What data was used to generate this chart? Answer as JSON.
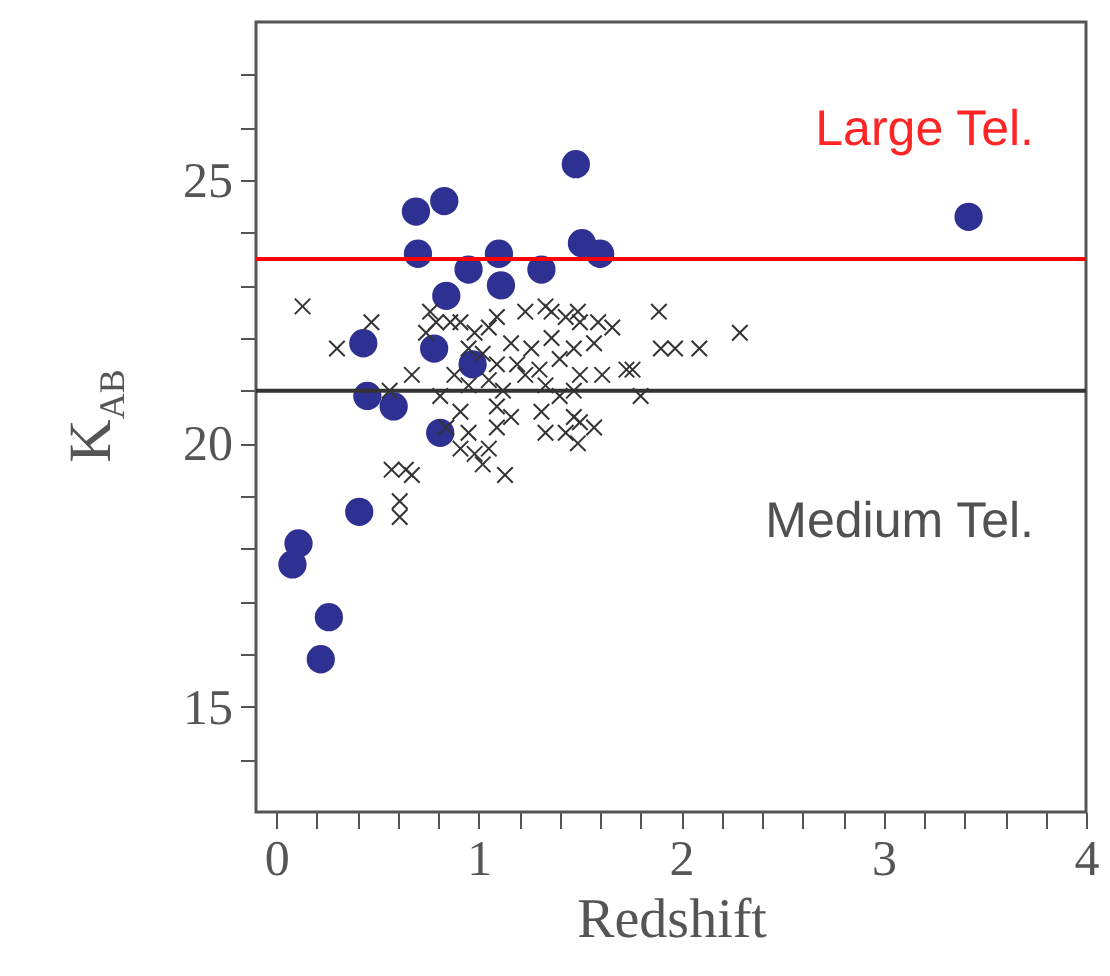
{
  "chart_data": {
    "type": "scatter",
    "xlabel": "Redshift",
    "ylabel": "K$_{AB}$",
    "xlim": [
      -0.1,
      4.0
    ],
    "ylim": [
      13,
      28
    ],
    "xticks": [
      0,
      {
        "value": 0.2,
        "label": null
      },
      {
        "value": 0.4,
        "label": null
      },
      {
        "value": 0.6,
        "label": null
      },
      {
        "value": 0.8,
        "label": null
      },
      1,
      {
        "value": 1.2,
        "label": null
      },
      {
        "value": 1.4,
        "label": null
      },
      {
        "value": 1.6,
        "label": null
      },
      {
        "value": 1.8,
        "label": null
      },
      2,
      {
        "value": 2.2,
        "label": null
      },
      {
        "value": 2.4,
        "label": null
      },
      {
        "value": 2.6,
        "label": null
      },
      {
        "value": 2.8,
        "label": null
      },
      3,
      {
        "value": 3.2,
        "label": null
      },
      {
        "value": 3.4,
        "label": null
      },
      {
        "value": 3.6,
        "label": null
      },
      {
        "value": 3.8,
        "label": null
      },
      4
    ],
    "yticks": [
      {
        "value": 14,
        "label": null
      },
      15,
      {
        "value": 16,
        "label": null
      },
      {
        "value": 17,
        "label": null
      },
      {
        "value": 18,
        "label": null
      },
      {
        "value": 19,
        "label": null
      },
      20,
      {
        "value": 21,
        "label": null
      },
      {
        "value": 22,
        "label": null
      },
      {
        "value": 23,
        "label": null
      },
      {
        "value": 24,
        "label": null
      },
      25,
      {
        "value": 26,
        "label": null
      },
      {
        "value": 27,
        "label": null
      }
    ],
    "grid": false,
    "series": [
      {
        "color": "#2e3192",
        "marker": "circle",
        "x": [
          1.48,
          3.42,
          0.69,
          0.83,
          0.7,
          0.95,
          1.1,
          1.11,
          1.31,
          1.51,
          1.6,
          0.84,
          0.43,
          0.78,
          0.97,
          0.45,
          0.58,
          0.81,
          0.41,
          0.11,
          0.08,
          0.26,
          0.22
        ],
        "values": [
          25.3,
          24.3,
          24.4,
          24.6,
          23.6,
          23.3,
          23.6,
          23.0,
          23.3,
          23.8,
          23.6,
          22.8,
          21.9,
          21.8,
          21.5,
          20.9,
          20.7,
          20.2,
          18.7,
          18.1,
          17.7,
          16.7,
          15.9
        ]
      },
      {
        "color": "#333333",
        "marker": "cross",
        "x": [
          0.13,
          0.47,
          0.3,
          0.67,
          0.56,
          0.57,
          0.64,
          0.67,
          0.61,
          0.61,
          1.89,
          1.9,
          1.97,
          2.09,
          2.29,
          1.8,
          1.73,
          1.76,
          1.66,
          1.59,
          1.49,
          1.43,
          1.36,
          1.33,
          1.23,
          1.09,
          1.05,
          0.98,
          0.91,
          0.76,
          0.79,
          0.86,
          0.74,
          1.16,
          1.26,
          1.36,
          1.47,
          1.57,
          1.19,
          1.3,
          1.4,
          1.5,
          1.61,
          0.88,
          0.95,
          1.05,
          1.12,
          1.23,
          1.33,
          1.4,
          1.47,
          0.81,
          0.91,
          1.09,
          1.16,
          1.31,
          1.47,
          0.84,
          0.95,
          1.09,
          1.33,
          1.43,
          1.5,
          1.49,
          0.91,
          0.98,
          1.05,
          1.02,
          1.13,
          1.57,
          1.02,
          1.09,
          0.95,
          1.5
        ],
        "values": [
          22.6,
          22.3,
          21.8,
          21.3,
          21.0,
          19.5,
          19.5,
          19.4,
          18.9,
          18.6,
          22.5,
          21.8,
          21.8,
          21.8,
          22.1,
          20.9,
          21.4,
          21.4,
          22.2,
          22.3,
          22.5,
          22.4,
          22.5,
          22.6,
          22.5,
          22.4,
          22.2,
          22.1,
          22.3,
          22.5,
          22.3,
          22.3,
          22.1,
          21.9,
          21.8,
          22.0,
          21.8,
          21.9,
          21.5,
          21.4,
          21.6,
          21.3,
          21.3,
          21.3,
          21.1,
          21.2,
          21.0,
          21.3,
          21.1,
          20.9,
          21.0,
          20.9,
          20.6,
          20.7,
          20.5,
          20.6,
          20.5,
          20.3,
          20.2,
          20.3,
          20.2,
          20.2,
          20.4,
          20.0,
          19.9,
          19.8,
          19.9,
          19.6,
          19.4,
          20.3,
          21.7,
          21.5,
          21.8,
          22.3
        ]
      }
    ],
    "ref_lines": [
      {
        "axis": "y",
        "value": 23.5,
        "label": "Large Tel.",
        "color": "#ff0000"
      },
      {
        "axis": "y",
        "value": 21.0,
        "label": "Medium Tel.",
        "color": "#333333"
      }
    ]
  }
}
